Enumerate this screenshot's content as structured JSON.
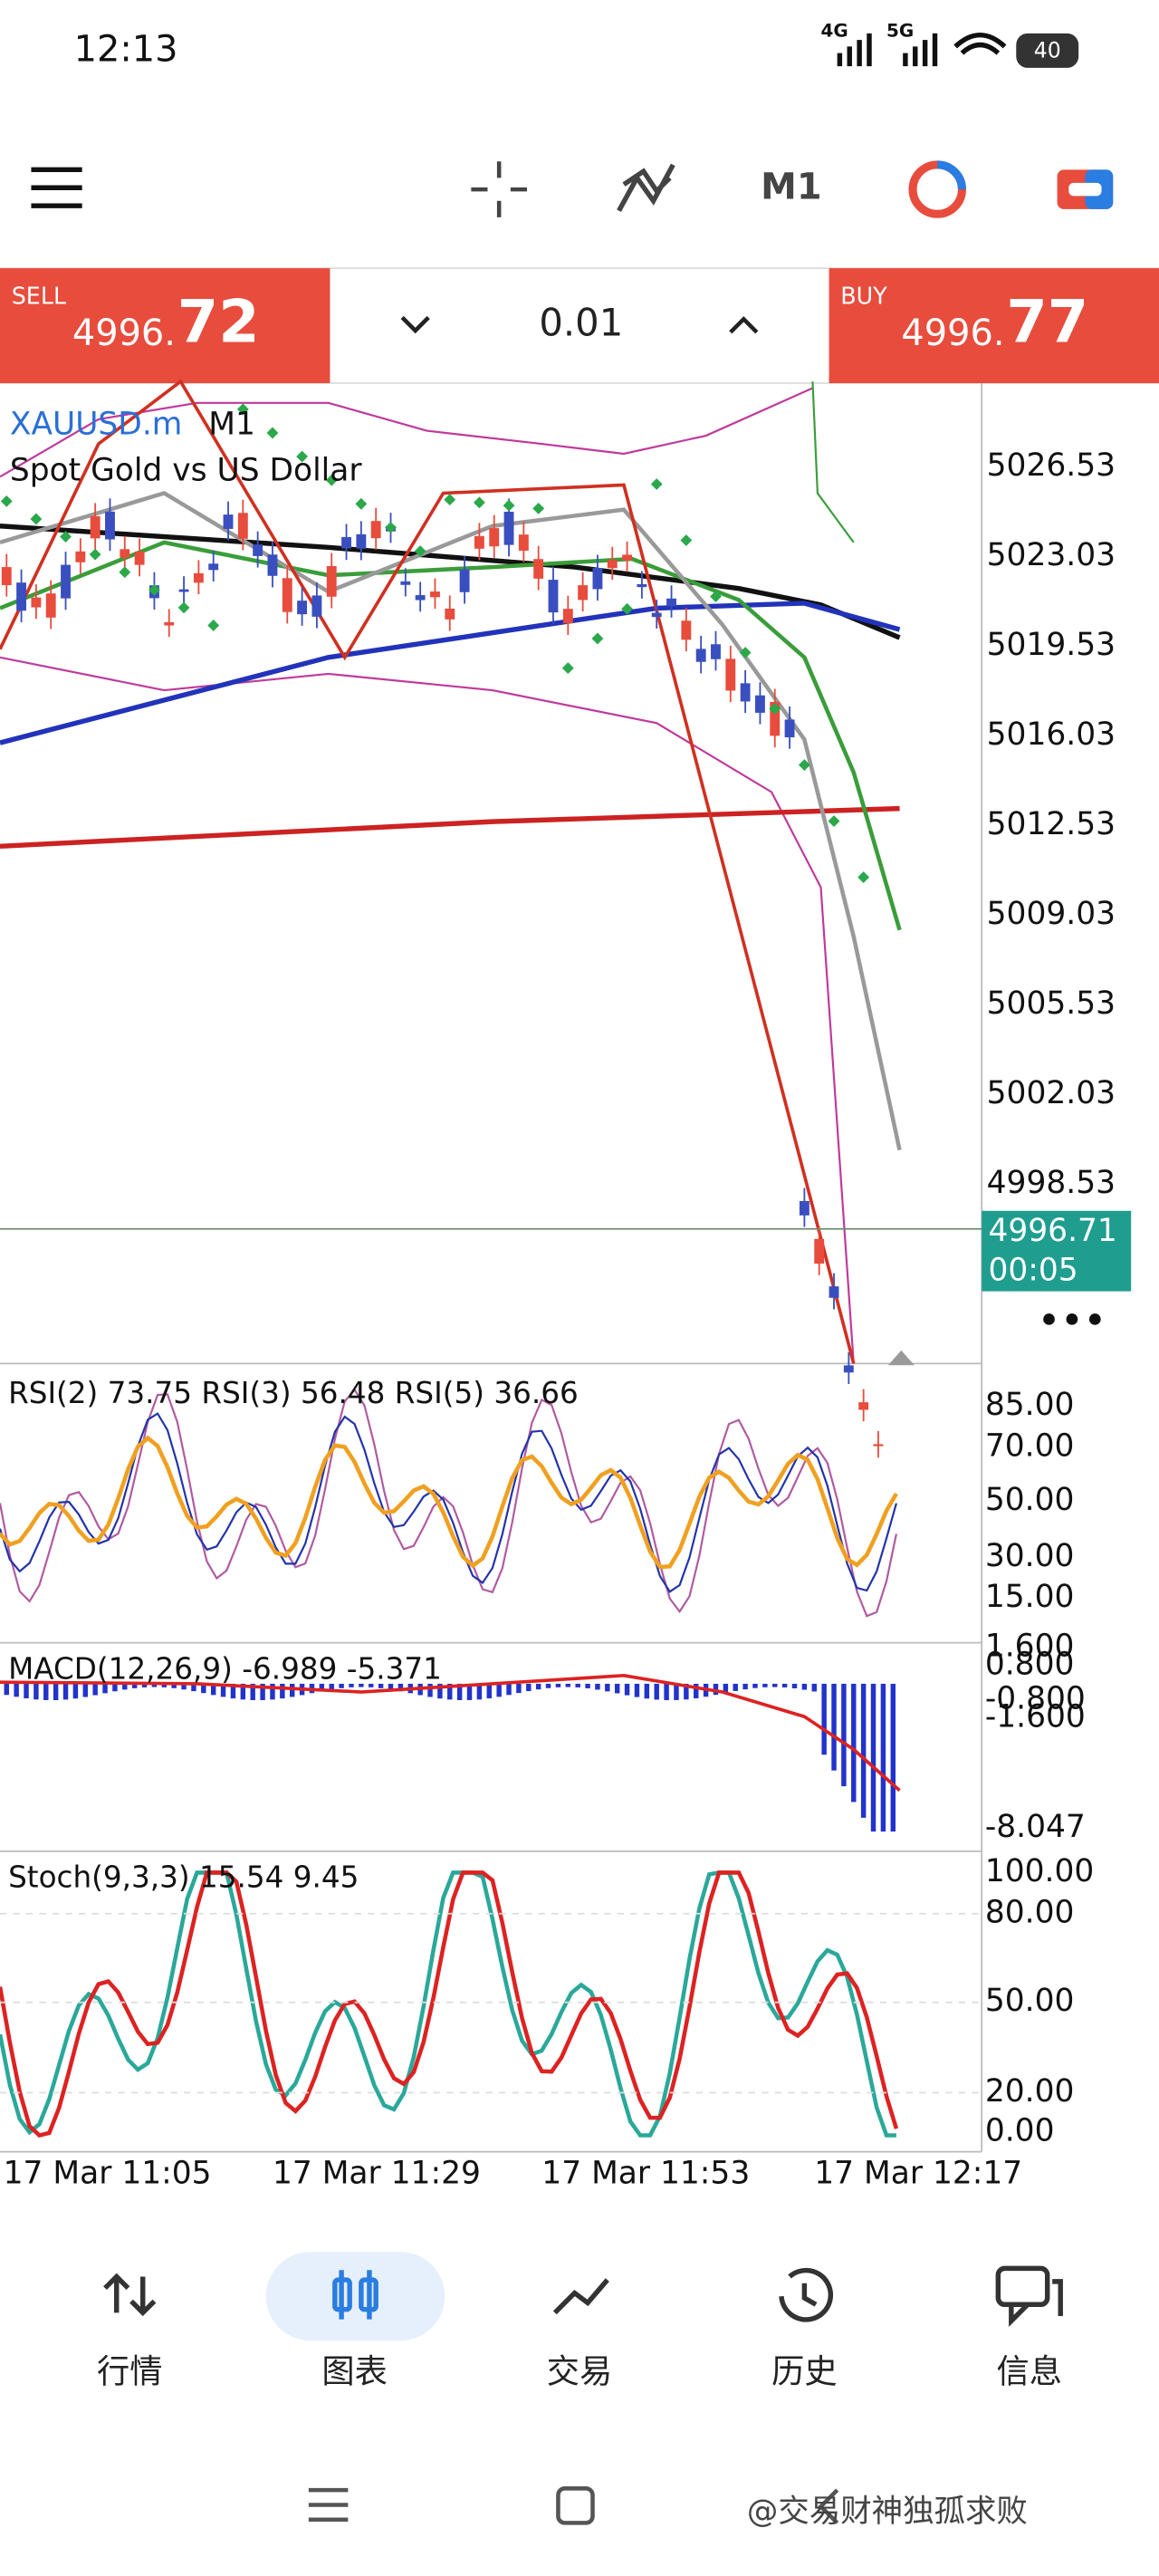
{
  "status_bar": {
    "time": "12:13",
    "network_1": "4G",
    "network_2": "5G",
    "battery": "40"
  },
  "toolbar": {
    "timeframe": "M1"
  },
  "trade_bar": {
    "sell": {
      "label": "SELL",
      "price_main": "4996.",
      "price_big": "72"
    },
    "lot": "0.01",
    "buy": {
      "label": "BUY",
      "price_main": "4996.",
      "price_big": "77"
    }
  },
  "chart": {
    "symbol": "XAUUSD.m",
    "timeframe": "M1",
    "description": "Spot Gold vs US Dollar",
    "price_labels": [
      "5026.53",
      "5023.03",
      "5019.53",
      "5016.03",
      "5012.53",
      "5009.03",
      "5005.53",
      "5002.03",
      "4998.53"
    ],
    "current_price": "4996.71",
    "countdown": "00:05"
  },
  "rsi": {
    "label": "RSI(2) 73.75 RSI(3) 56.48 RSI(5) 36.66",
    "levels": [
      "85.00",
      "70.00",
      "50.00",
      "30.00",
      "15.00"
    ]
  },
  "macd": {
    "label": "MACD(12,26,9) -6.989 -5.371",
    "levels": [
      "1.600",
      "0.800",
      "-0.800",
      "-1.600",
      "-8.047"
    ]
  },
  "stoch": {
    "label": "Stoch(9,3,3) 15.54 9.45",
    "levels": [
      "100.00",
      "80.00",
      "50.00",
      "20.00",
      "0.00"
    ]
  },
  "time_labels": [
    "17 Mar 11:05",
    "17 Mar 11:29",
    "17 Mar 11:53",
    "17 Mar 12:17"
  ],
  "nav": [
    "行情",
    "图表",
    "交易",
    "历史",
    "信息"
  ],
  "watermark": "@交易财神独孤求败"
}
